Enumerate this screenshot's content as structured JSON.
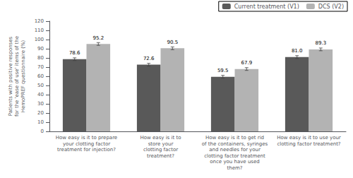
{
  "chart_data": {
    "type": "bar",
    "categories": [
      "How easy is it to prepare\nyour clotting factor\ntreatment for injection?",
      "How easy is it to\nstore your\nclotting factor\ntreatment?",
      "How easy is it to get rid\nof the containers, syringes\nand needles for your\nclotting factor treatment\nonce you have used\nthem?",
      "How easy is it to use your\nclotting factor treatment?"
    ],
    "series": [
      {
        "name": "Current treatment (V1)",
        "color": "#595959",
        "values": [
          78.6,
          72.6,
          59.5,
          81.0
        ],
        "value_labels": [
          "78.6",
          "72.6",
          "59.5",
          "81.0"
        ],
        "error": 1.5
      },
      {
        "name": "DCS (V2)",
        "color": "#b3b3b3",
        "values": [
          95.2,
          90.5,
          67.9,
          89.3
        ],
        "value_labels": [
          "95.2",
          "90.5",
          "67.9",
          "89.3"
        ],
        "error": 1.5
      }
    ],
    "ylabel": "Patients with positive responses\nfor the 'ease of use' items of the\nHemoPREF questionnaire (%)",
    "ylim": [
      0,
      120
    ],
    "yticks": [
      0,
      10,
      20,
      30,
      40,
      50,
      60,
      70,
      80,
      90,
      100,
      110,
      120
    ],
    "grid": false,
    "legend": "upper right",
    "data_labels": true
  }
}
